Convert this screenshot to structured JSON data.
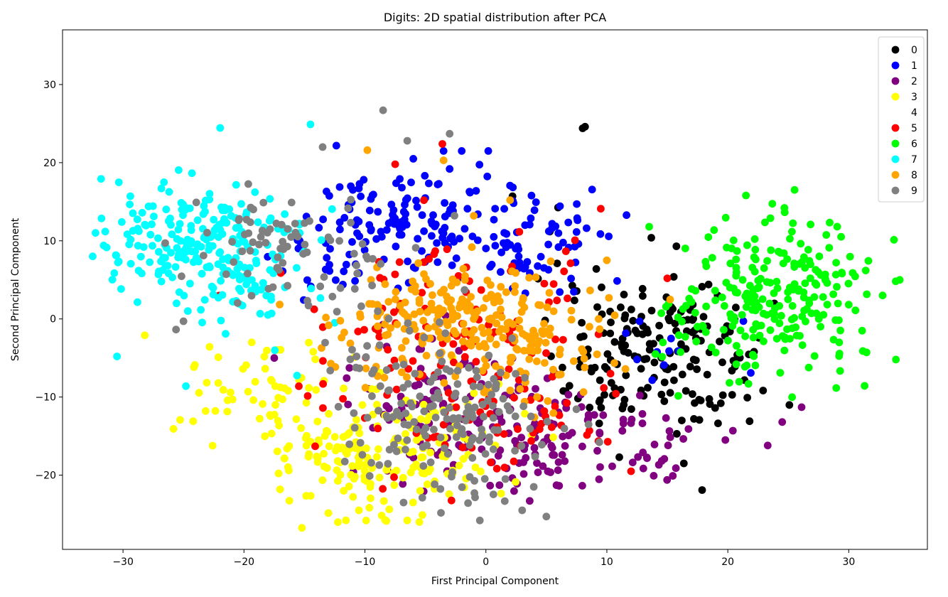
{
  "chart_data": {
    "type": "scatter",
    "title": "Digits: 2D spatial distribution after PCA",
    "xlabel": "First Principal Component",
    "ylabel": "Second Principal Component",
    "xlim": [
      -35,
      36.5
    ],
    "ylim": [
      -29.5,
      37
    ],
    "xticks": [
      -30,
      -20,
      -10,
      0,
      10,
      20,
      30
    ],
    "yticks": [
      -20,
      -10,
      0,
      10,
      20,
      30
    ],
    "xtick_labels": [
      "−30",
      "−20",
      "−10",
      "0",
      "10",
      "20",
      "30"
    ],
    "ytick_labels": [
      "−20",
      "−10",
      "0",
      "10",
      "20",
      "30"
    ],
    "grid": false,
    "legend_position": "top-right",
    "series": [
      {
        "name": "0",
        "color": "#000000",
        "clusters": [
          {
            "cx": 14.5,
            "cy": -4.5,
            "sx": 3.6,
            "sy": 4.8,
            "n": 150
          },
          {
            "cx": 9.5,
            "cy": -6,
            "sx": 2.2,
            "sy": 4,
            "n": 30
          },
          {
            "cx": 5.5,
            "cy": 12,
            "sx": 1.5,
            "sy": 2.5,
            "n": 5
          }
        ],
        "points": [
          [
            8.2,
            24.6
          ],
          [
            8.0,
            24.4
          ],
          [
            2.2,
            15.7
          ],
          [
            17.2,
            -12.8
          ],
          [
            21.8,
            -13.1
          ]
        ]
      },
      {
        "name": "1",
        "color": "#0000ff",
        "clusters": [
          {
            "cx": -7.5,
            "cy": 13,
            "sx": 3.6,
            "sy": 3.6,
            "n": 110
          },
          {
            "cx": 1,
            "cy": 10,
            "sx": 3,
            "sy": 3,
            "n": 60
          },
          {
            "cx": 7,
            "cy": 9,
            "sx": 2.5,
            "sy": 3,
            "n": 30
          },
          {
            "cx": -13,
            "cy": 7,
            "sx": 2,
            "sy": 3,
            "n": 20
          },
          {
            "cx": 13,
            "cy": -5,
            "sx": 3,
            "sy": 3.5,
            "n": 12
          }
        ],
        "points": [
          [
            -3.5,
            21.5
          ],
          [
            -2,
            21.5
          ],
          [
            0.2,
            21.5
          ],
          [
            -6,
            20.5
          ],
          [
            -3,
            19.2
          ]
        ]
      },
      {
        "name": "2",
        "color": "#800080",
        "clusters": [
          {
            "cx": 4.5,
            "cy": -15.5,
            "sx": 4.2,
            "sy": 3.6,
            "n": 110
          },
          {
            "cx": -4.5,
            "cy": -11,
            "sx": 3.6,
            "sy": 4.2,
            "n": 70
          },
          {
            "cx": 13,
            "cy": -15,
            "sx": 3,
            "sy": 3.5,
            "n": 25
          }
        ],
        "points": [
          [
            23.3,
            -16.2
          ],
          [
            24.5,
            -13.2
          ],
          [
            26.1,
            -11.3
          ],
          [
            19.8,
            -15.5
          ],
          [
            -17.5,
            -5
          ]
        ]
      },
      {
        "name": "3",
        "color": "#ffff00",
        "clusters": [
          {
            "cx": -10.5,
            "cy": -18,
            "sx": 3.8,
            "sy": 3.8,
            "n": 120
          },
          {
            "cx": -18,
            "cy": -8.5,
            "sx": 4,
            "sy": 3.5,
            "n": 60
          },
          {
            "cx": -4,
            "cy": -16.5,
            "sx": 3.2,
            "sy": 4.5,
            "n": 70
          }
        ],
        "points": [
          [
            -28.2,
            -2.1
          ],
          [
            -24.2,
            -13.1
          ],
          [
            -5.5,
            -26
          ],
          [
            -6.5,
            -25.8
          ],
          [
            -10.5,
            -24.5
          ]
        ]
      },
      {
        "name": "4",
        "color": "#ffffff",
        "clusters": [],
        "points": []
      },
      {
        "name": "5",
        "color": "#ff0000",
        "clusters": [
          {
            "cx": -3,
            "cy": -3,
            "sx": 5.5,
            "sy": 7,
            "n": 130
          },
          {
            "cx": 4,
            "cy": -14,
            "sx": 3.5,
            "sy": 4,
            "n": 35
          }
        ],
        "points": [
          [
            -3.6,
            22.4
          ],
          [
            -7.5,
            19.8
          ],
          [
            9.5,
            14.1
          ],
          [
            15,
            5.2
          ],
          [
            12,
            -19.5
          ]
        ]
      },
      {
        "name": "6",
        "color": "#00ff00",
        "clusters": [
          {
            "cx": 24.5,
            "cy": 3.5,
            "sx": 3.6,
            "sy": 5,
            "n": 210
          },
          {
            "cx": 18.5,
            "cy": -1.5,
            "sx": 2.6,
            "sy": 4,
            "n": 35
          }
        ],
        "points": [
          [
            33.9,
            -5.2
          ],
          [
            32.8,
            3
          ],
          [
            31.4,
            6.2
          ],
          [
            21.5,
            15.8
          ],
          [
            13.5,
            11.8
          ]
        ]
      },
      {
        "name": "7",
        "color": "#00ffff",
        "clusters": [
          {
            "cx": -24.5,
            "cy": 10,
            "sx": 3.6,
            "sy": 4.2,
            "n": 200
          },
          {
            "cx": -18.5,
            "cy": 6.5,
            "sx": 3,
            "sy": 4,
            "n": 50
          }
        ],
        "points": [
          [
            -14.5,
            24.9
          ],
          [
            -30.5,
            -4.8
          ],
          [
            -31.6,
            9.4
          ],
          [
            -24.8,
            -8.6
          ],
          [
            -12.5,
            -0.5
          ]
        ]
      },
      {
        "name": "8",
        "color": "#ffa500",
        "clusters": [
          {
            "cx": -2.5,
            "cy": 0,
            "sx": 5.2,
            "sy": 3.6,
            "n": 240
          },
          {
            "cx": 4.5,
            "cy": -6.5,
            "sx": 3,
            "sy": 3,
            "n": 35
          }
        ],
        "points": [
          [
            -9.8,
            21.6
          ],
          [
            -3.5,
            20.3
          ],
          [
            2,
            15.2
          ],
          [
            -1,
            13.2
          ],
          [
            10,
            7.5
          ]
        ]
      },
      {
        "name": "9",
        "color": "#808080",
        "clusters": [
          {
            "cx": -3,
            "cy": -12.5,
            "sx": 4,
            "sy": 5,
            "n": 170
          },
          {
            "cx": -17,
            "cy": 9.5,
            "sx": 3.8,
            "sy": 3.6,
            "n": 70
          },
          {
            "cx": -10.5,
            "cy": 1,
            "sx": 2.5,
            "sy": 6,
            "n": 25
          }
        ],
        "points": [
          [
            -8.5,
            26.7
          ],
          [
            -6.5,
            22.8
          ],
          [
            -3,
            23.7
          ],
          [
            -0.5,
            -25.8
          ],
          [
            3,
            -24.5
          ],
          [
            5,
            -25.3
          ],
          [
            -25,
            -0.3
          ],
          [
            -13.5,
            22
          ]
        ]
      }
    ]
  }
}
